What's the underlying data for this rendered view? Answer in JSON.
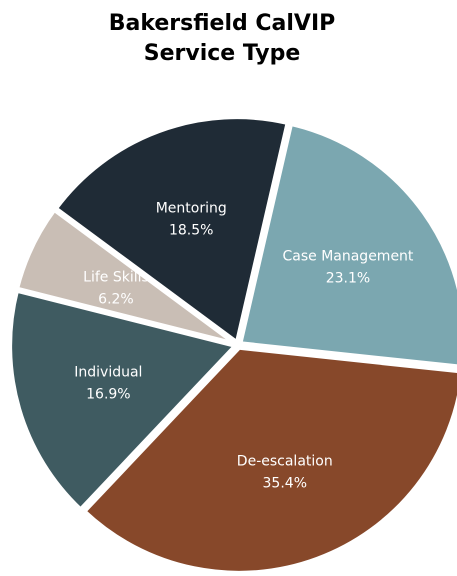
{
  "chart_data": {
    "type": "pie",
    "title": [
      "Bakersfield CalVIP",
      "Service Type"
    ],
    "categories": [
      "Case Management",
      "De-escalation",
      "Individual",
      "Life Skills",
      "Mentoring"
    ],
    "values": [
      23.1,
      35.4,
      16.9,
      6.2,
      18.5
    ],
    "value_labels": [
      "23.1%",
      "35.4%",
      "16.9%",
      "6.2%",
      "18.5%"
    ],
    "colors": [
      "#7ba7b0",
      "#87482a",
      "#3f5b61",
      "#c9beb5",
      "#1f2b36"
    ]
  }
}
